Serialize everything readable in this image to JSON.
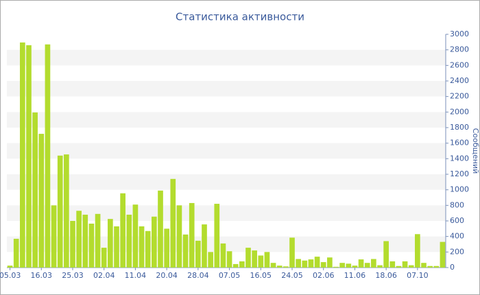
{
  "chart_data": {
    "type": "bar",
    "title": "Статистика активности",
    "y_label": "Сообщений",
    "categories": [
      "05.03",
      null,
      null,
      null,
      null,
      "16.03",
      null,
      null,
      null,
      null,
      "25.03",
      null,
      null,
      null,
      null,
      "02.04",
      null,
      null,
      null,
      null,
      "11.04",
      null,
      null,
      null,
      null,
      "20.04",
      null,
      null,
      null,
      null,
      "28.04",
      null,
      null,
      null,
      null,
      "07.05",
      null,
      null,
      null,
      null,
      "16.05",
      null,
      null,
      null,
      null,
      "24.05",
      null,
      null,
      null,
      null,
      "02.06",
      null,
      null,
      null,
      null,
      "11.06",
      null,
      null,
      null,
      null,
      "18.06",
      null,
      null,
      null,
      null,
      "07.10",
      null,
      null,
      null,
      null
    ],
    "values": [
      25,
      370,
      2895,
      2860,
      1995,
      1720,
      2870,
      800,
      1440,
      1455,
      600,
      730,
      680,
      565,
      690,
      255,
      625,
      530,
      955,
      680,
      810,
      530,
      470,
      655,
      990,
      500,
      1140,
      800,
      425,
      830,
      345,
      555,
      200,
      820,
      310,
      210,
      45,
      80,
      255,
      220,
      155,
      200,
      60,
      25,
      15,
      385,
      110,
      90,
      105,
      140,
      70,
      130,
      10,
      60,
      50,
      25,
      105,
      60,
      110,
      30,
      340,
      80,
      20,
      80,
      30,
      430,
      60,
      20,
      20,
      330
    ],
    "color": "#b3dc2e",
    "ylim": [
      0,
      3000
    ],
    "yticks": [
      0,
      200,
      400,
      600,
      800,
      1000,
      1200,
      1400,
      1600,
      1800,
      2000,
      2200,
      2400,
      2600,
      2800,
      3000
    ],
    "grid": true
  }
}
